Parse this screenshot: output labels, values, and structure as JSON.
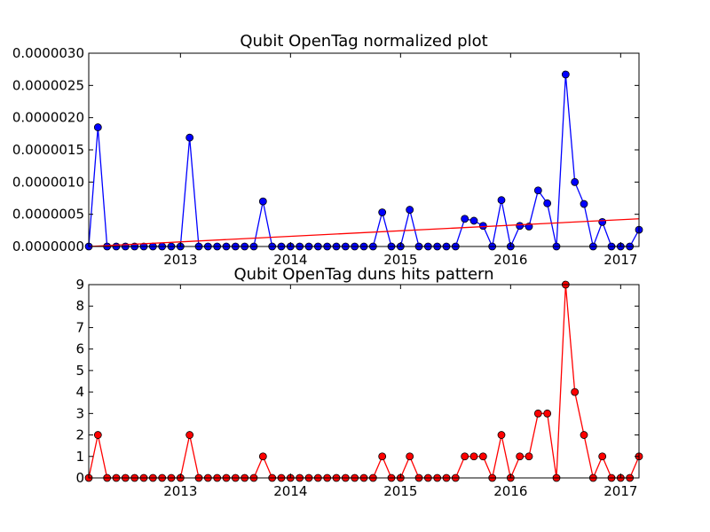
{
  "chart_data": [
    {
      "type": "line",
      "title": "Qubit OpenTag normalized plot",
      "xlabel": "",
      "ylabel": "",
      "xlim": [
        "2012-03-01",
        "2017-03-01"
      ],
      "ylim": [
        0,
        3e-06
      ],
      "yticks": [
        "0.0000000",
        "0.0000005",
        "0.0000010",
        "0.0000015",
        "0.0000020",
        "0.0000025",
        "0.0000030"
      ],
      "xticks": [
        "2013",
        "2014",
        "2015",
        "2016",
        "2017"
      ],
      "grid": false,
      "series": [
        {
          "color": "#0000ff",
          "marker": "circle",
          "x": [
            "2012-03",
            "2012-04",
            "2012-05",
            "2012-06",
            "2012-07",
            "2012-08",
            "2012-09",
            "2012-10",
            "2012-11",
            "2012-12",
            "2013-01",
            "2013-02",
            "2013-03",
            "2013-04",
            "2013-05",
            "2013-06",
            "2013-07",
            "2013-08",
            "2013-09",
            "2013-10",
            "2013-11",
            "2013-12",
            "2014-01",
            "2014-02",
            "2014-03",
            "2014-04",
            "2014-05",
            "2014-06",
            "2014-07",
            "2014-08",
            "2014-09",
            "2014-10",
            "2014-11",
            "2014-12",
            "2015-01",
            "2015-02",
            "2015-03",
            "2015-04",
            "2015-05",
            "2015-06",
            "2015-07",
            "2015-08",
            "2015-09",
            "2015-10",
            "2015-11",
            "2015-12",
            "2016-01",
            "2016-02",
            "2016-03",
            "2016-04",
            "2016-05",
            "2016-06",
            "2016-07",
            "2016-08",
            "2016-09",
            "2016-10",
            "2016-11",
            "2016-12",
            "2017-01",
            "2017-02",
            "2017-03"
          ],
          "values": [
            0,
            1.85e-06,
            0,
            0,
            0,
            0,
            0,
            0,
            0,
            0,
            0,
            1.69e-06,
            0,
            0,
            0,
            0,
            0,
            0,
            0,
            7e-07,
            0,
            0,
            0,
            0,
            0,
            0,
            0,
            0,
            0,
            0,
            0,
            0,
            5.3e-07,
            0,
            0,
            5.7e-07,
            0,
            0,
            0,
            0,
            0,
            4.3e-07,
            4e-07,
            3.2e-07,
            0,
            7.2e-07,
            0,
            3.2e-07,
            3.1e-07,
            8.7e-07,
            6.7e-07,
            0,
            2.67e-06,
            1e-06,
            6.6e-07,
            0,
            3.8e-07,
            0,
            0,
            0,
            2.6e-07
          ]
        },
        {
          "color": "#ff0000",
          "marker": "none",
          "x": [
            "2012-03",
            "2017-03"
          ],
          "values": [
            0,
            4.3e-07
          ]
        }
      ]
    },
    {
      "type": "line",
      "title": "Qubit OpenTag duns hits pattern",
      "xlabel": "",
      "ylabel": "",
      "xlim": [
        "2012-03-01",
        "2017-03-01"
      ],
      "ylim": [
        0,
        9
      ],
      "yticks": [
        "0",
        "1",
        "2",
        "3",
        "4",
        "5",
        "6",
        "7",
        "8",
        "9"
      ],
      "xticks": [
        "2013",
        "2014",
        "2015",
        "2016",
        "2017"
      ],
      "grid": false,
      "series": [
        {
          "color": "#ff0000",
          "marker": "circle",
          "x": [
            "2012-03",
            "2012-04",
            "2012-05",
            "2012-06",
            "2012-07",
            "2012-08",
            "2012-09",
            "2012-10",
            "2012-11",
            "2012-12",
            "2013-01",
            "2013-02",
            "2013-03",
            "2013-04",
            "2013-05",
            "2013-06",
            "2013-07",
            "2013-08",
            "2013-09",
            "2013-10",
            "2013-11",
            "2013-12",
            "2014-01",
            "2014-02",
            "2014-03",
            "2014-04",
            "2014-05",
            "2014-06",
            "2014-07",
            "2014-08",
            "2014-09",
            "2014-10",
            "2014-11",
            "2014-12",
            "2015-01",
            "2015-02",
            "2015-03",
            "2015-04",
            "2015-05",
            "2015-06",
            "2015-07",
            "2015-08",
            "2015-09",
            "2015-10",
            "2015-11",
            "2015-12",
            "2016-01",
            "2016-02",
            "2016-03",
            "2016-04",
            "2016-05",
            "2016-06",
            "2016-07",
            "2016-08",
            "2016-09",
            "2016-10",
            "2016-11",
            "2016-12",
            "2017-01",
            "2017-02",
            "2017-03"
          ],
          "values": [
            0,
            2,
            0,
            0,
            0,
            0,
            0,
            0,
            0,
            0,
            0,
            2,
            0,
            0,
            0,
            0,
            0,
            0,
            0,
            1,
            0,
            0,
            0,
            0,
            0,
            0,
            0,
            0,
            0,
            0,
            0,
            0,
            1,
            0,
            0,
            1,
            0,
            0,
            0,
            0,
            0,
            1,
            1,
            1,
            0,
            2,
            0,
            1,
            1,
            3,
            3,
            0,
            9,
            4,
            2,
            0,
            1,
            0,
            0,
            0,
            1
          ]
        }
      ]
    }
  ]
}
